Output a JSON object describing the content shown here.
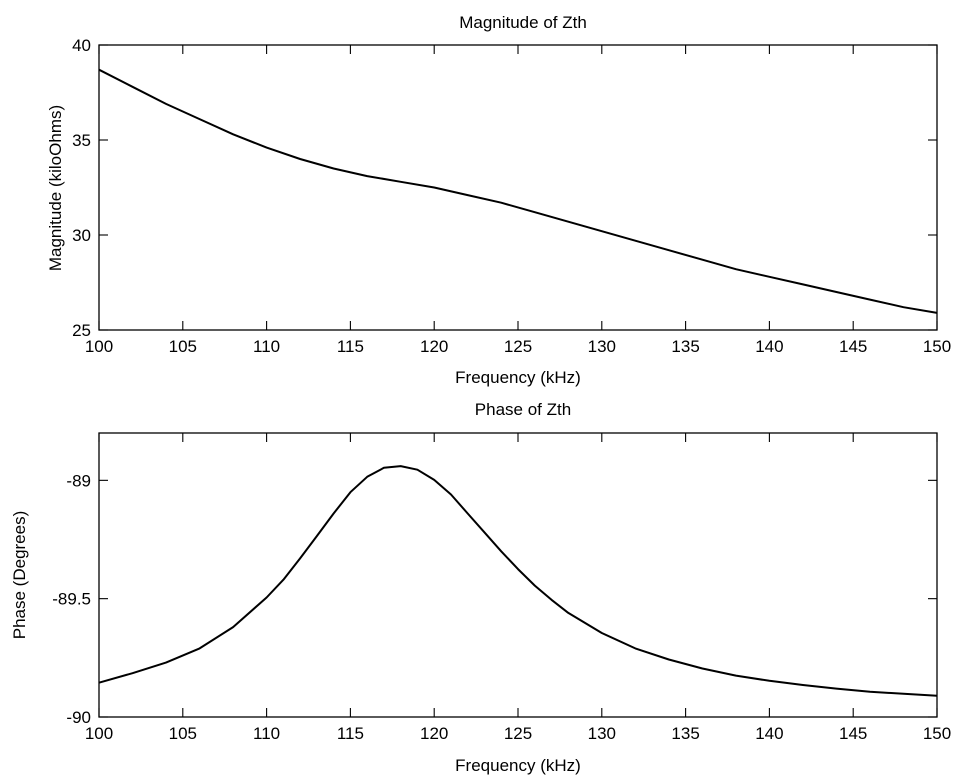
{
  "chart_data": [
    {
      "type": "line",
      "title": "Magnitude of Zth",
      "xlabel": "Frequency (kHz)",
      "ylabel": "Magnitude (kiloOhms)",
      "xlim": [
        100,
        150
      ],
      "ylim": [
        25,
        40
      ],
      "xticks": [
        100,
        105,
        110,
        115,
        120,
        125,
        130,
        135,
        140,
        145,
        150
      ],
      "yticks": [
        25,
        30,
        35,
        40
      ],
      "grid": false,
      "line_color": "#000000",
      "series": [
        {
          "x": [
            100,
            102,
            104,
            106,
            108,
            110,
            112,
            114,
            116,
            118,
            120,
            122,
            124,
            126,
            128,
            130,
            132,
            134,
            136,
            138,
            140,
            142,
            144,
            146,
            148,
            150
          ],
          "y": [
            38.7,
            37.8,
            36.9,
            36.1,
            35.3,
            34.6,
            34.0,
            33.5,
            33.1,
            32.8,
            32.5,
            32.1,
            31.7,
            31.2,
            30.7,
            30.2,
            29.7,
            29.2,
            28.7,
            28.2,
            27.8,
            27.4,
            27.0,
            26.6,
            26.2,
            25.9
          ]
        }
      ]
    },
    {
      "type": "line",
      "title": "Phase of Zth",
      "xlabel": "Frequency (kHz)",
      "ylabel": "Phase (Degrees)",
      "xlim": [
        100,
        150
      ],
      "ylim": [
        -90,
        -88.8
      ],
      "xticks": [
        100,
        105,
        110,
        115,
        120,
        125,
        130,
        135,
        140,
        145,
        150
      ],
      "yticks": [
        -90,
        -89.5,
        -89
      ],
      "ytick_labels": [
        "-90",
        "-89.5",
        "-89"
      ],
      "grid": false,
      "line_color": "#000000",
      "series": [
        {
          "x": [
            100,
            102,
            104,
            106,
            108,
            110,
            111,
            112,
            113,
            114,
            115,
            116,
            117,
            118,
            119,
            120,
            121,
            122,
            123,
            124,
            125,
            126,
            127,
            128,
            130,
            132,
            134,
            136,
            138,
            140,
            142,
            144,
            146,
            148,
            150
          ],
          "y": [
            -89.855,
            -89.815,
            -89.77,
            -89.71,
            -89.62,
            -89.495,
            -89.42,
            -89.33,
            -89.235,
            -89.14,
            -89.05,
            -88.985,
            -88.947,
            -88.94,
            -88.955,
            -88.998,
            -89.06,
            -89.14,
            -89.22,
            -89.3,
            -89.375,
            -89.445,
            -89.505,
            -89.56,
            -89.645,
            -89.71,
            -89.757,
            -89.795,
            -89.825,
            -89.847,
            -89.865,
            -89.88,
            -89.893,
            -89.902,
            -89.91
          ]
        }
      ]
    }
  ]
}
